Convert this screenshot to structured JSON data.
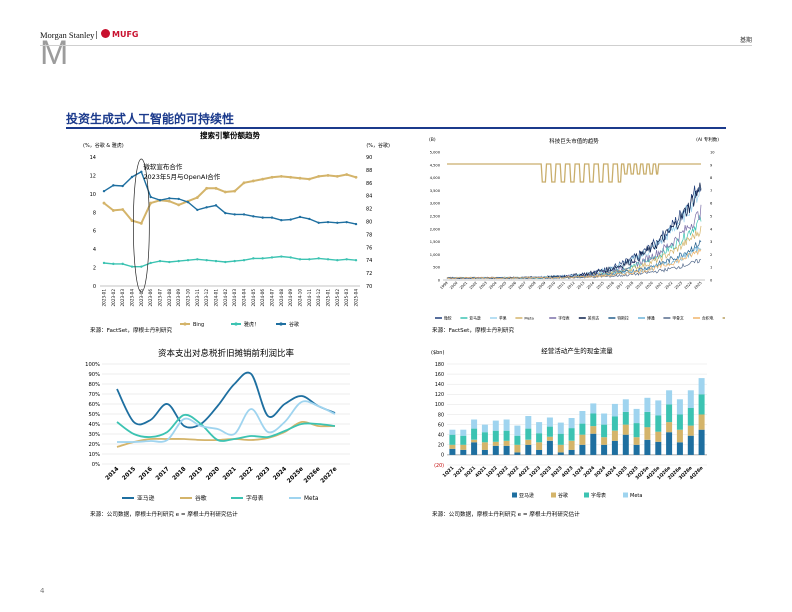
{
  "header": {
    "logo_letter": "M",
    "logo_brand": "Morgan Stanley",
    "logo_separator": "|",
    "logo_partner": "MUFG",
    "top_right_tag": "基期"
  },
  "page": {
    "title": "投资生成式人工智能的可持续性",
    "number": "4"
  },
  "colors": {
    "title": "#1b3a8c",
    "gold": "#d4b46a",
    "teal": "#3cc3b2",
    "navy": "#1e6fa0",
    "lightblue": "#9fd4ef"
  },
  "charts": [
    {
      "type": "line",
      "title": "搜索引擎份额趋势",
      "y_left_label": "(%，谷歌 & 雅虎)",
      "y_right_label": "(%，谷歌)",
      "y_left_ticks": [
        "0",
        "2",
        "4",
        "6",
        "8",
        "10",
        "12",
        "14"
      ],
      "y_right_ticks": [
        "70",
        "72",
        "74",
        "76",
        "78",
        "80",
        "82",
        "84",
        "86",
        "88",
        "90"
      ],
      "x_ticks": [
        "2023-01",
        "2023-02",
        "2023-03",
        "2023-04",
        "2023-05",
        "2023-06",
        "2023-07",
        "2023-08",
        "2023-09",
        "2023-10",
        "2023-11",
        "2023-12",
        "2024-01",
        "2024-02",
        "2024-03",
        "2024-04",
        "2024-05",
        "2024-06",
        "2024-07",
        "2024-08",
        "2024-09",
        "2024-10",
        "2024-11",
        "2024-12",
        "2025-01",
        "2025-02",
        "2025-03",
        "2025-04"
      ],
      "annotation": [
        "微软宣布合作",
        "2023年5月与OpenAI合作"
      ],
      "series": [
        {
          "name": "Bing",
          "color": "#d4b46a",
          "axis": "left",
          "values": [
            9.0,
            8.2,
            8.3,
            7.1,
            6.8,
            9.0,
            9.3,
            9.2,
            8.8,
            9.2,
            9.6,
            10.6,
            10.6,
            10.2,
            10.3,
            11.2,
            11.4,
            11.6,
            11.8,
            11.9,
            11.8,
            11.7,
            11.6,
            11.9,
            12.0,
            11.9,
            12.1,
            11.8
          ]
        },
        {
          "name": "雅虎！",
          "color": "#3cc3b2",
          "axis": "left",
          "values": [
            2.5,
            2.4,
            2.4,
            2.1,
            2.1,
            2.5,
            2.7,
            2.6,
            2.7,
            2.8,
            2.9,
            2.8,
            2.7,
            2.6,
            2.7,
            2.8,
            3.0,
            3.0,
            3.1,
            3.2,
            3.1,
            2.9,
            2.9,
            3.0,
            2.9,
            2.8,
            2.9,
            2.8
          ]
        },
        {
          "name": "谷歌",
          "color": "#1e6fa0",
          "axis": "right",
          "values": [
            84.7,
            85.6,
            85.5,
            86.9,
            87.7,
            83.8,
            83.3,
            83.6,
            83.5,
            83.0,
            81.8,
            82.2,
            82.5,
            81.3,
            81.1,
            81.1,
            80.8,
            80.6,
            80.6,
            80.2,
            80.3,
            80.7,
            80.4,
            79.8,
            79.9,
            79.8,
            79.9,
            79.6
          ]
        }
      ],
      "y_left_range": [
        0,
        14
      ],
      "y_right_range": [
        70,
        90
      ],
      "source": "来源：FactSet，摩根士丹利研究"
    },
    {
      "type": "line",
      "title": "科技巨头市值的趋势",
      "y_left_label": "(B)",
      "y_right_label": "(AI 专利数)",
      "y_left_ticks": [
        "0",
        "500",
        "1,000",
        "1,500",
        "2,000",
        "2,500",
        "3,000",
        "3,500",
        "4,000",
        "4,500",
        "5,000"
      ],
      "y_right_ticks": [
        "0",
        "1",
        "2",
        "3",
        "4",
        "5",
        "6",
        "7",
        "8",
        "9",
        "10"
      ],
      "x_ticks": [
        "1999",
        "2000",
        "2001",
        "2002",
        "2003",
        "2004",
        "2005",
        "2006",
        "2007",
        "2008",
        "2009",
        "2010",
        "2011",
        "2012",
        "2013",
        "2014",
        "2015",
        "2016",
        "2017",
        "2018",
        "2019",
        "2020",
        "2021",
        "2022",
        "2023",
        "2024",
        "2025"
      ],
      "series_names": [
        "微软",
        "亚马逊",
        "苹果",
        "Meta",
        "字母表",
        "英伟达",
        "特斯拉",
        "博通",
        "甲骨文",
        "台积电",
        "AI专利数"
      ],
      "series_colors": [
        "#1f3d7a",
        "#3cc3b2",
        "#9fd4ef",
        "#d4b46a",
        "#7b6fa8",
        "#0b1f4a",
        "#245f8c",
        "#6bb2d8",
        "#556b8c",
        "#f0b46a",
        "#b8a060"
      ],
      "y_left_range": [
        0,
        5000
      ],
      "source": "来源：FactSet，摩根士丹利研究"
    },
    {
      "type": "line",
      "title": "资本支出对息税折旧摊销前利润比率",
      "y_ticks": [
        "0%",
        "10%",
        "20%",
        "30%",
        "40%",
        "50%",
        "60%",
        "70%",
        "80%",
        "90%",
        "100%"
      ],
      "categories": [
        "2014",
        "2015",
        "2016",
        "2017",
        "2018",
        "2019",
        "2020",
        "2021",
        "2022",
        "2023",
        "2024",
        "2025e",
        "2026e",
        "2027e"
      ],
      "series": [
        {
          "name": "亚马逊",
          "color": "#1e6fa0",
          "values": [
            75,
            42,
            44,
            60,
            38,
            40,
            58,
            80,
            90,
            48,
            60,
            68,
            58,
            51
          ]
        },
        {
          "name": "谷歌",
          "color": "#d4b46a",
          "values": [
            17,
            22,
            25,
            25,
            25,
            24,
            24,
            25,
            24,
            26,
            32,
            42,
            38,
            38
          ]
        },
        {
          "name": "字母表",
          "color": "#3cc3b2",
          "values": [
            42,
            30,
            27,
            32,
            49,
            40,
            24,
            25,
            28,
            27,
            33,
            40,
            40,
            38
          ]
        },
        {
          "name": "Meta",
          "color": "#9fd4ef",
          "values": [
            22,
            22,
            23,
            24,
            45,
            38,
            35,
            30,
            55,
            32,
            42,
            62,
            58,
            50
          ]
        }
      ],
      "ylim": [
        0,
        100
      ],
      "source": "来源：公司数据，摩根士丹利研究  e = 摩根士丹利研究估计"
    },
    {
      "type": "bar",
      "title": "经营活动产生的现金流量",
      "y_label": "($bn)",
      "y_ticks": [
        "(20)",
        "0",
        "20",
        "40",
        "60",
        "80",
        "100",
        "120",
        "140",
        "160",
        "180"
      ],
      "categories": [
        "1Q21",
        "2Q21",
        "3Q21",
        "4Q21",
        "1Q22",
        "2Q22",
        "3Q22",
        "4Q22",
        "1Q23",
        "2Q23",
        "3Q23",
        "4Q23",
        "1Q24",
        "2Q24",
        "3Q24",
        "4Q24",
        "1Q25",
        "2Q25",
        "3Q25e",
        "4Q25e",
        "1Q26e",
        "2Q26e",
        "3Q26e",
        "4Q26e"
      ],
      "series": [
        {
          "name": "亚马逊",
          "color": "#1e6fa0",
          "values": [
            12,
            10,
            25,
            10,
            18,
            18,
            5,
            20,
            10,
            28,
            5,
            10,
            20,
            42,
            20,
            28,
            40,
            20,
            30,
            26,
            45,
            25,
            38,
            50
          ]
        },
        {
          "name": "谷歌",
          "color": "#d4b46a",
          "values": [
            8,
            10,
            5,
            15,
            8,
            10,
            15,
            10,
            15,
            8,
            15,
            18,
            20,
            15,
            15,
            20,
            20,
            15,
            25,
            20,
            20,
            25,
            20,
            30
          ]
        },
        {
          "name": "字母表",
          "color": "#3cc3b2",
          "values": [
            20,
            18,
            22,
            20,
            22,
            20,
            18,
            22,
            18,
            20,
            22,
            25,
            22,
            25,
            25,
            28,
            25,
            28,
            30,
            32,
            35,
            30,
            35,
            40
          ]
        },
        {
          "name": "Meta",
          "color": "#9fd4ef",
          "values": [
            10,
            12,
            18,
            15,
            20,
            22,
            20,
            25,
            22,
            18,
            22,
            20,
            25,
            20,
            22,
            25,
            25,
            28,
            28,
            30,
            28,
            30,
            35,
            32
          ]
        }
      ],
      "ylim": [
        -20,
        180
      ],
      "source": "来源：公司数据，摩根士丹利研究  e = 摩根士丹利研究估计"
    }
  ]
}
